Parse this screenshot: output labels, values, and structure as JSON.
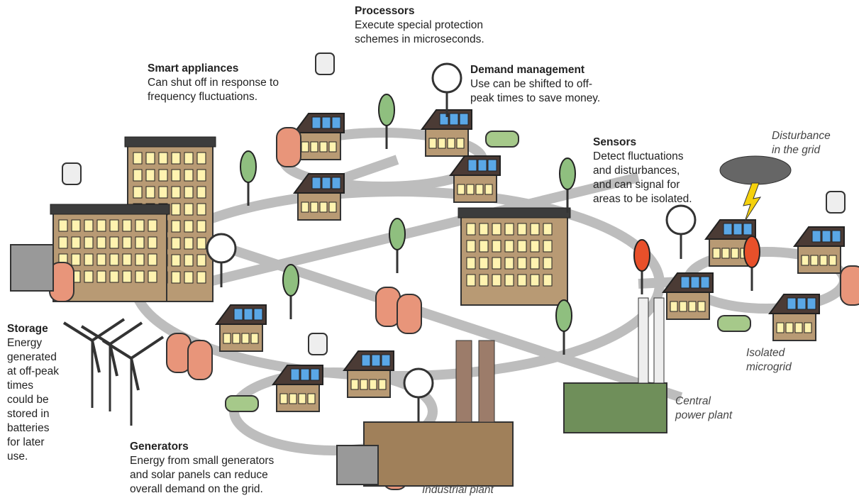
{
  "callouts": [
    {
      "title": "Processors",
      "lines": [
        "Execute special protection",
        "schemes in microseconds."
      ]
    },
    {
      "title": "Smart appliances",
      "lines": [
        "Can shut off in response to",
        "frequency fluctuations."
      ]
    },
    {
      "title": "Demand management",
      "lines": [
        "Use can be shifted to off-",
        "peak times to save money."
      ]
    },
    {
      "title": "Sensors",
      "lines": [
        "Detect fluctuations",
        "and disturbances,",
        "and can signal for",
        "areas to be isolated."
      ]
    },
    {
      "title": "Storage",
      "lines": [
        "Energy",
        "generated",
        "at off-peak",
        "times",
        "could be",
        "stored in",
        "batteries",
        "for later",
        "use."
      ]
    },
    {
      "title": "Generators",
      "lines": [
        "Energy from small generators",
        "and solar panels can reduce",
        "overall demand on the grid."
      ]
    }
  ],
  "places": [
    {
      "lines": [
        "Disturbance",
        "in the grid"
      ]
    },
    {
      "lines": [
        "Isolated",
        "microgrid"
      ]
    },
    {
      "lines": [
        "Central",
        "power plant"
      ]
    },
    {
      "lines": [
        "Industrial plant"
      ]
    }
  ]
}
